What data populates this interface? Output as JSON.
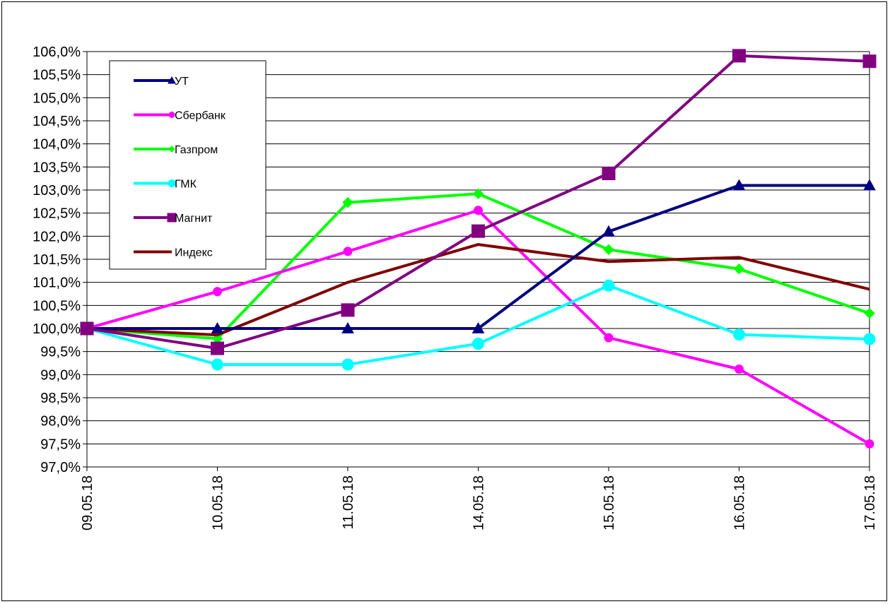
{
  "chart_data": {
    "type": "line",
    "title": "",
    "xlabel": "",
    "ylabel": "",
    "x": [
      "09.05.18",
      "10.05.18",
      "11.05.18",
      "14.05.18",
      "15.05.18",
      "16.05.18",
      "17.05.18"
    ],
    "ylim": [
      97.0,
      106.0
    ],
    "ytick_step": 0.5,
    "ytick_labels": [
      "97,0%",
      "97,5%",
      "98,0%",
      "98,5%",
      "99,0%",
      "99,5%",
      "100,0%",
      "100,5%",
      "101,0%",
      "101,5%",
      "102,0%",
      "102,5%",
      "103,0%",
      "103,5%",
      "104,0%",
      "104,5%",
      "105,0%",
      "105,5%",
      "106,0%"
    ],
    "grid": "horizontal",
    "legend_position": "top-left",
    "series": [
      {
        "name": "УТ",
        "color": "#000080",
        "marker": "triangle",
        "values": [
          100.0,
          100.0,
          100.0,
          100.0,
          102.1,
          103.1,
          103.1
        ]
      },
      {
        "name": "Сбербанк",
        "color": "#ff00ff",
        "marker": "circle",
        "values": [
          100.0,
          100.8,
          101.67,
          102.56,
          99.8,
          99.12,
          97.5
        ]
      },
      {
        "name": "Газпром",
        "color": "#00ff00",
        "marker": "diamond",
        "values": [
          100.0,
          99.78,
          102.73,
          102.92,
          101.71,
          101.29,
          100.33
        ]
      },
      {
        "name": "ГМК",
        "color": "#00ffff",
        "marker": "circle",
        "values": [
          100.0,
          99.22,
          99.22,
          99.67,
          100.93,
          99.87,
          99.77
        ]
      },
      {
        "name": "Магнит",
        "color": "#800080",
        "marker": "square",
        "values": [
          100.0,
          99.57,
          100.4,
          102.11,
          103.36,
          105.91,
          105.79
        ]
      },
      {
        "name": "Индекс",
        "color": "#800000",
        "marker": "none",
        "values": [
          100.0,
          99.86,
          101.0,
          101.82,
          101.45,
          101.54,
          100.85
        ]
      }
    ]
  }
}
